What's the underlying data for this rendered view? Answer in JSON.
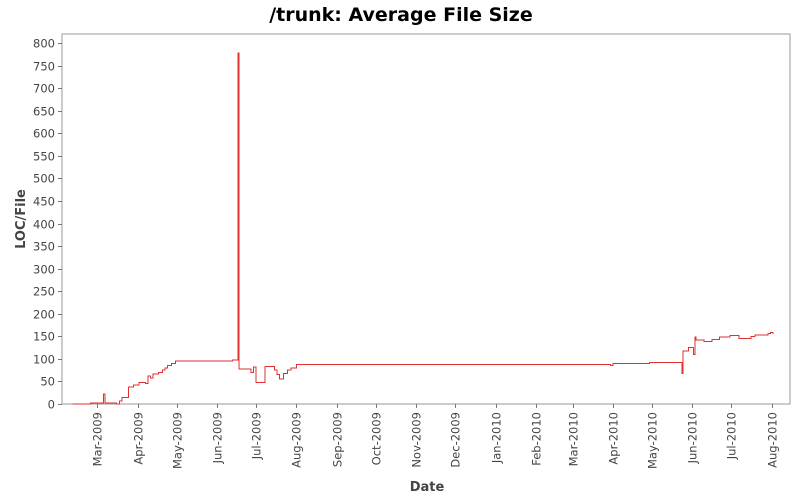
{
  "chart_data": {
    "type": "line",
    "title": "/trunk: Average File Size",
    "xlabel": "Date",
    "ylabel": "LOC/File",
    "ylim": [
      0,
      820
    ],
    "yticks": [
      0,
      50,
      100,
      150,
      200,
      250,
      300,
      350,
      400,
      450,
      500,
      550,
      600,
      650,
      700,
      750,
      800
    ],
    "xlim": [
      "2009-02-02",
      "2010-08-15"
    ],
    "xticks": [
      {
        "label": "Mar-2009",
        "date": "2009-03-01"
      },
      {
        "label": "Apr-2009",
        "date": "2009-04-01"
      },
      {
        "label": "May-2009",
        "date": "2009-05-01"
      },
      {
        "label": "Jun-2009",
        "date": "2009-06-01"
      },
      {
        "label": "Jul-2009",
        "date": "2009-07-01"
      },
      {
        "label": "Aug-2009",
        "date": "2009-08-01"
      },
      {
        "label": "Sep-2009",
        "date": "2009-09-01"
      },
      {
        "label": "Oct-2009",
        "date": "2009-10-01"
      },
      {
        "label": "Nov-2009",
        "date": "2009-11-01"
      },
      {
        "label": "Dec-2009",
        "date": "2009-12-01"
      },
      {
        "label": "Jan-2010",
        "date": "2010-01-01"
      },
      {
        "label": "Feb-2010",
        "date": "2010-02-01"
      },
      {
        "label": "Mar-2010",
        "date": "2010-03-01"
      },
      {
        "label": "Apr-2010",
        "date": "2010-04-01"
      },
      {
        "label": "May-2010",
        "date": "2010-05-01"
      },
      {
        "label": "Jun-2010",
        "date": "2010-06-01"
      },
      {
        "label": "Jul-2010",
        "date": "2010-07-01"
      },
      {
        "label": "Aug-2010",
        "date": "2010-08-01"
      }
    ],
    "grid": false,
    "line_color": "#e03030",
    "series": [
      {
        "step": true,
        "points": [
          [
            "2009-02-10",
            0
          ],
          [
            "2009-02-24",
            2
          ],
          [
            "2009-03-06",
            22
          ],
          [
            "2009-03-07",
            2
          ],
          [
            "2009-03-16",
            0
          ],
          [
            "2009-03-18",
            7
          ],
          [
            "2009-03-20",
            14
          ],
          [
            "2009-03-25",
            38
          ],
          [
            "2009-03-29",
            42
          ],
          [
            "2009-04-02",
            48
          ],
          [
            "2009-04-07",
            45
          ],
          [
            "2009-04-09",
            62
          ],
          [
            "2009-04-11",
            58
          ],
          [
            "2009-04-13",
            67
          ],
          [
            "2009-04-17",
            70
          ],
          [
            "2009-04-20",
            75
          ],
          [
            "2009-04-22",
            80
          ],
          [
            "2009-04-24",
            85
          ],
          [
            "2009-04-27",
            90
          ],
          [
            "2009-04-30",
            95
          ],
          [
            "2009-06-13",
            97
          ],
          [
            "2009-06-17",
            778
          ],
          [
            "2009-06-18",
            78
          ],
          [
            "2009-06-27",
            70
          ],
          [
            "2009-06-29",
            82
          ],
          [
            "2009-07-01",
            48
          ],
          [
            "2009-07-08",
            83
          ],
          [
            "2009-07-15",
            75
          ],
          [
            "2009-07-17",
            65
          ],
          [
            "2009-07-19",
            55
          ],
          [
            "2009-07-22",
            68
          ],
          [
            "2009-07-25",
            75
          ],
          [
            "2009-07-28",
            80
          ],
          [
            "2009-08-01",
            88
          ],
          [
            "2010-03-30",
            85
          ],
          [
            "2010-04-01",
            90
          ],
          [
            "2010-04-29",
            92
          ],
          [
            "2010-05-24",
            68
          ],
          [
            "2010-05-25",
            118
          ],
          [
            "2010-05-29",
            125
          ],
          [
            "2010-06-02",
            110
          ],
          [
            "2010-06-03",
            148
          ],
          [
            "2010-06-04",
            142
          ],
          [
            "2010-06-10",
            138
          ],
          [
            "2010-06-16",
            143
          ],
          [
            "2010-06-22",
            148
          ],
          [
            "2010-06-30",
            152
          ],
          [
            "2010-07-07",
            145
          ],
          [
            "2010-07-16",
            150
          ],
          [
            "2010-07-19",
            153
          ],
          [
            "2010-07-29",
            156
          ],
          [
            "2010-07-31",
            158
          ],
          [
            "2010-08-02",
            155
          ]
        ]
      }
    ]
  }
}
